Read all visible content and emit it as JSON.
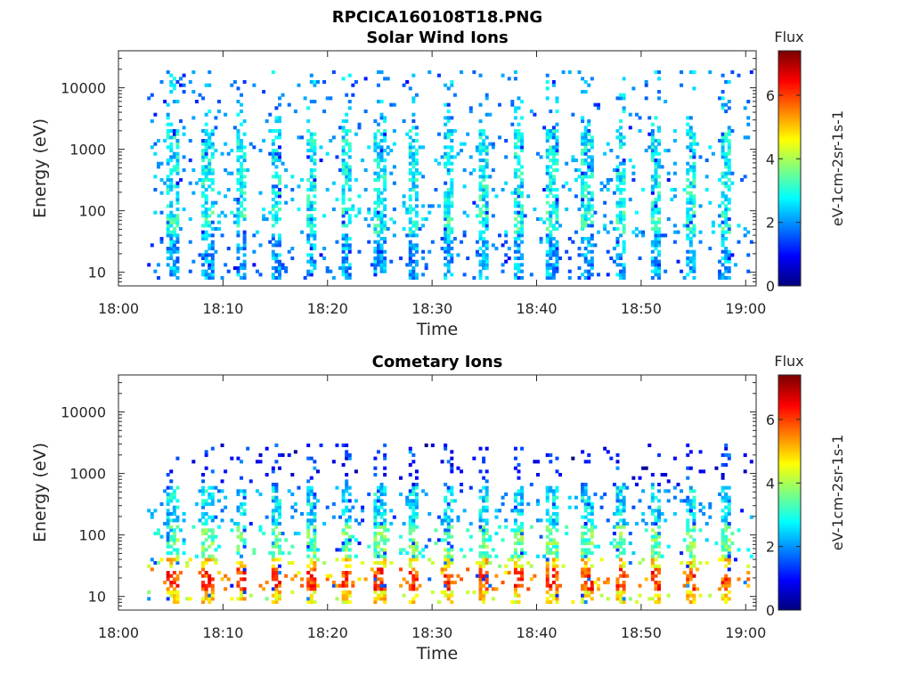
{
  "figure": {
    "title": "RPCICA160108T18.PNG"
  },
  "colormap": [
    "#00007f",
    "#0000ff",
    "#007fff",
    "#00ffff",
    "#7fff7f",
    "#ffff00",
    "#ff7f00",
    "#ff0000",
    "#7f0000"
  ],
  "chart_data": [
    {
      "type": "heatmap",
      "title": "Solar Wind Ions",
      "xlabel": "Time",
      "ylabel": "Energy (eV)",
      "x_ticks": [
        "18:00",
        "18:10",
        "18:20",
        "18:30",
        "18:40",
        "18:50",
        "19:00"
      ],
      "xlim_minutes": [
        0,
        61
      ],
      "ylim": [
        6,
        40000
      ],
      "yscale": "log",
      "y_ticks": [
        {
          "value": 10,
          "label": "10"
        },
        {
          "value": 100,
          "label": "100"
        },
        {
          "value": 1000,
          "label": "1000"
        },
        {
          "value": 10000,
          "label": "10000"
        }
      ],
      "colorbar": {
        "title": "Flux",
        "label": "eV-1cm-2sr-1s-1",
        "range": [
          0,
          7.4
        ],
        "ticks": [
          0,
          2,
          4,
          6
        ],
        "tick_labels": [
          "0",
          "2",
          "4",
          "6"
        ]
      },
      "data_start_minute": 3,
      "bands": [
        {
          "emin": 8,
          "emax": 40,
          "level": 2.2
        },
        {
          "emin": 10,
          "emax": 20,
          "level": 3.4
        },
        {
          "emin": 40,
          "emax": 100,
          "level": 3.0
        },
        {
          "emin": 100,
          "emax": 400,
          "level": 2.8
        },
        {
          "emin": 400,
          "emax": 2000,
          "level": 2.7
        },
        {
          "emin": 2000,
          "emax": 20000,
          "level": 2.3
        }
      ],
      "burst_period_minutes": 3.3,
      "noise": "sparse"
    },
    {
      "type": "heatmap",
      "title": "Cometary Ions",
      "xlabel": "Time",
      "ylabel": "Energy (eV)",
      "x_ticks": [
        "18:00",
        "18:10",
        "18:20",
        "18:30",
        "18:40",
        "18:50",
        "19:00"
      ],
      "xlim_minutes": [
        0,
        61
      ],
      "ylim": [
        6,
        40000
      ],
      "yscale": "log",
      "y_ticks": [
        {
          "value": 10,
          "label": "10"
        },
        {
          "value": 100,
          "label": "100"
        },
        {
          "value": 1000,
          "label": "1000"
        },
        {
          "value": 10000,
          "label": "10000"
        }
      ],
      "colorbar": {
        "title": "Flux",
        "label": "eV-1cm-2sr-1s-1",
        "range": [
          0,
          7.4
        ],
        "ticks": [
          0,
          2,
          4,
          6
        ],
        "tick_labels": [
          "0",
          "2",
          "4",
          "6"
        ]
      },
      "data_start_minute": 3,
      "bands": [
        {
          "emin": 12,
          "emax": 30,
          "level": 6.0
        },
        {
          "emin": 8,
          "emax": 45,
          "level": 4.8
        },
        {
          "emin": 45,
          "emax": 150,
          "level": 3.5
        },
        {
          "emin": 150,
          "emax": 600,
          "level": 2.6
        },
        {
          "emin": 600,
          "emax": 3000,
          "level": 1.3
        }
      ],
      "burst_period_minutes": 3.3,
      "noise": "sparse"
    }
  ]
}
